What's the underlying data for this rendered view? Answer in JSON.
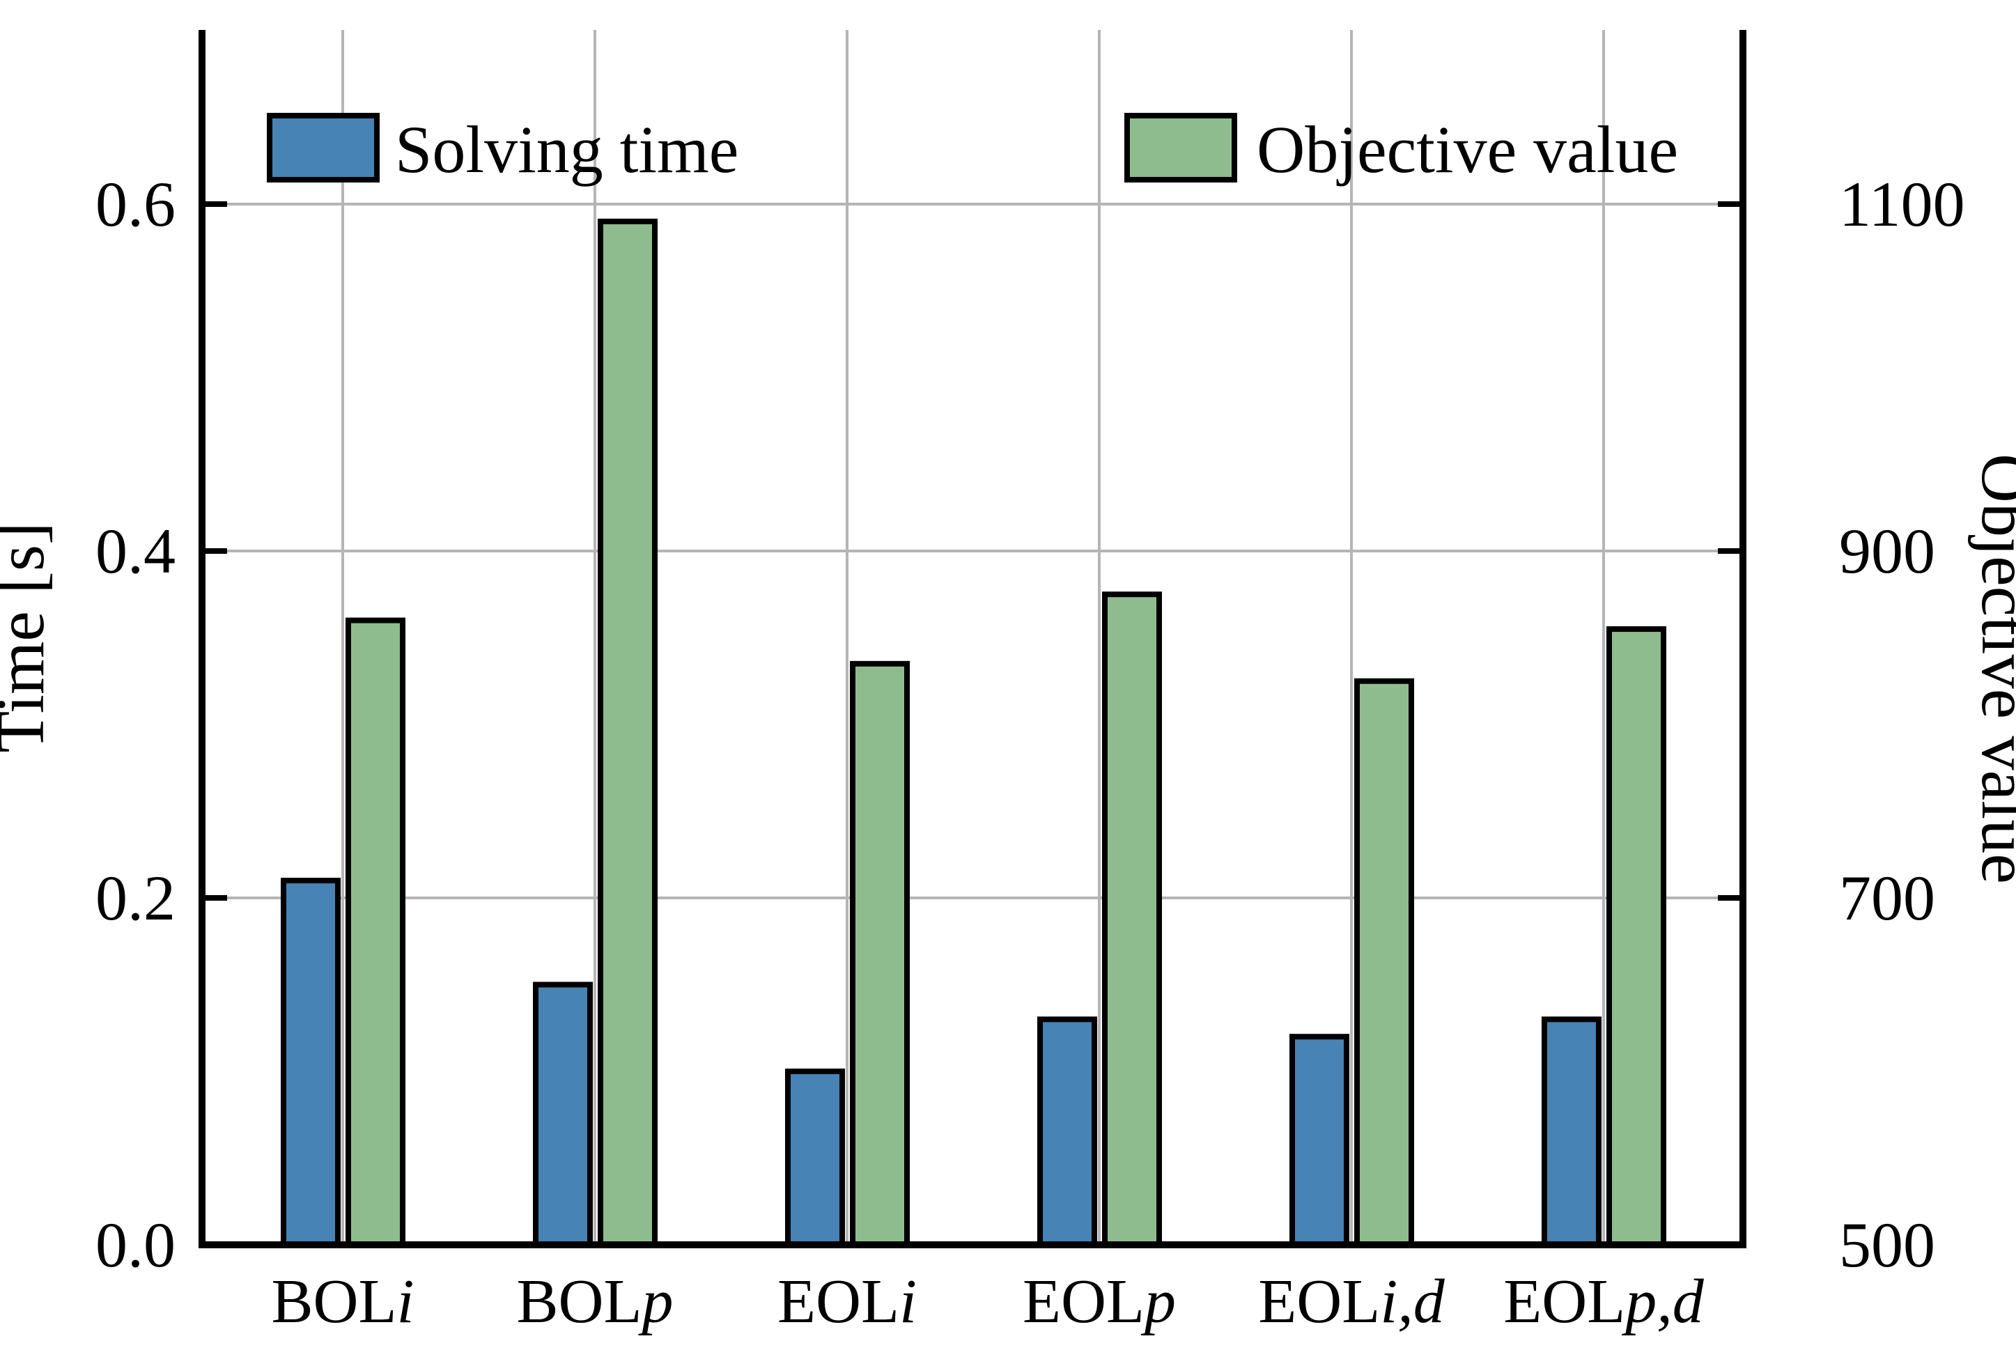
{
  "chart_data": {
    "type": "bar",
    "categories": [
      "BOLi",
      "BOLp",
      "EOLi",
      "EOLp",
      "EOLi,d",
      "EOLp,d"
    ],
    "series": [
      {
        "name": "Solving time",
        "axis": "left",
        "color": "#4783B4",
        "values": [
          0.21,
          0.15,
          0.1,
          0.13,
          0.12,
          0.13
        ]
      },
      {
        "name": "Objective value",
        "axis": "right",
        "color": "#8FBC8F",
        "values": [
          860,
          1090,
          835,
          875,
          825,
          855
        ]
      }
    ],
    "left_axis": {
      "label": "Time [s]",
      "ticks": [
        0.0,
        0.2,
        0.4,
        0.6
      ],
      "tick_labels": [
        "0.0",
        "0.2",
        "0.4",
        "0.6"
      ],
      "range": [
        0,
        0.7
      ]
    },
    "right_axis": {
      "label": "Objective value",
      "ticks": [
        500,
        700,
        900,
        1100
      ],
      "tick_labels": [
        "500",
        "700",
        "900",
        "1100"
      ],
      "range": [
        500,
        1200
      ]
    },
    "grid": true,
    "legend_position": "top",
    "title": "",
    "xlabel": ""
  },
  "colors": {
    "bar_outline": "#000000",
    "gridline": "#b5b5b5",
    "spine": "#000000",
    "background": "#ffffff"
  }
}
